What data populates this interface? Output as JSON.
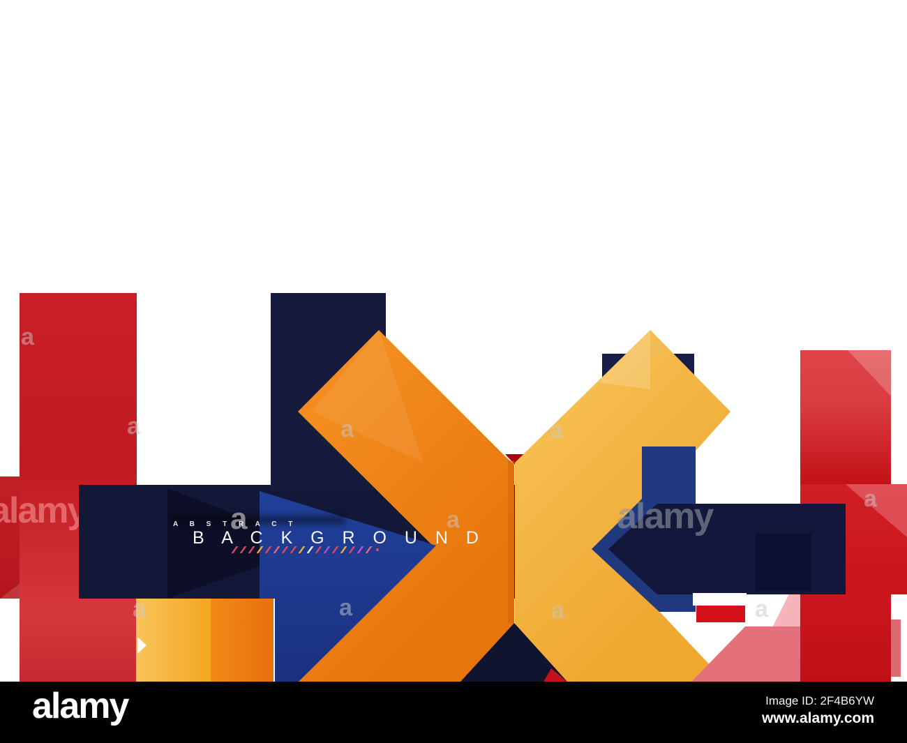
{
  "image": {
    "description": "abstract geometric background stock image with multicolor square and cross arrow shapes"
  },
  "palette": {
    "orange": "#E8750C",
    "amber": "#EFA830",
    "navy": "#141838",
    "royal_blue": "#20409A",
    "red": "#C21B22",
    "bright_red": "#D5111B",
    "pink": "#E4707C",
    "white": "#FFFFFF",
    "black": "#010101"
  },
  "artwork_text": {
    "abstract": "A B S T R A C T",
    "background": "B A C K G R O U N D"
  },
  "watermark": {
    "glyph": "a",
    "word": "alamy"
  },
  "decor": {
    "slash_colors": [
      "#D9485F",
      "#D9485F",
      "#D9485F",
      "#F0A93C",
      "#D9485F",
      "#E06A80",
      "#D9485F",
      "#D9485F",
      "#F0A93C",
      "#EDEDED",
      "#D9485F",
      "#A957C8",
      "#D9485F",
      "#F0A93C",
      "#D9485F",
      "#C44FD0",
      "#E06A80"
    ],
    "slash_dot_color": "#D9485F"
  },
  "footer": {
    "logo": "alamy",
    "image_id": "Image ID: 2F4B6YW",
    "url": "www.alamy.com"
  }
}
